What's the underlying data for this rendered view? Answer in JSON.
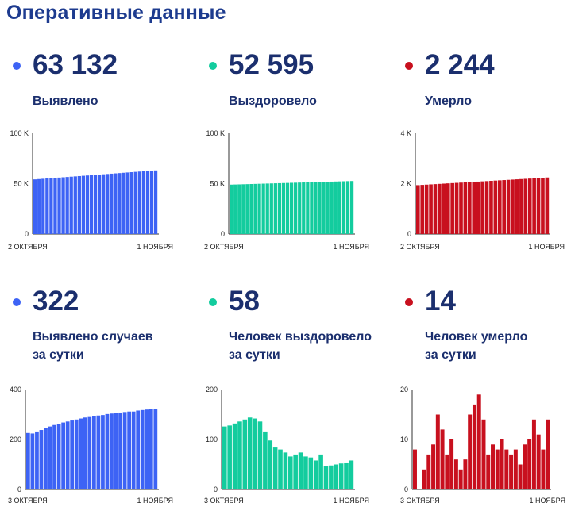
{
  "title": "Оперативные данные",
  "cards": [
    {
      "number": "63 132",
      "caption": [
        "Выявлено"
      ],
      "color": "#3d63f5",
      "chart_data": {
        "type": "bar",
        "ylim": [
          0,
          100000
        ],
        "yticks": [
          "0",
          "50 K",
          "100 K"
        ],
        "xlabels": [
          "2 ОКТЯБРЯ",
          "1 НОЯБРЯ"
        ],
        "values": [
          54200,
          54500,
          54800,
          55100,
          55400,
          55700,
          56000,
          56300,
          56600,
          56900,
          57200,
          57500,
          57800,
          58100,
          58400,
          58700,
          59000,
          59300,
          59600,
          59900,
          60200,
          60500,
          60800,
          61100,
          61400,
          61700,
          62000,
          62300,
          62600,
          62900,
          63132
        ]
      }
    },
    {
      "number": "52 595",
      "caption": [
        "Выздоровело"
      ],
      "color": "#13cc9e",
      "chart_data": {
        "type": "bar",
        "ylim": [
          0,
          100000
        ],
        "yticks": [
          "0",
          "50 K",
          "100 K"
        ],
        "xlabels": [
          "2 ОКТЯБРЯ",
          "1 НОЯБРЯ"
        ],
        "values": [
          49000,
          49120,
          49240,
          49360,
          49480,
          49600,
          49720,
          49840,
          49960,
          50080,
          50200,
          50320,
          50440,
          50560,
          50680,
          50800,
          50920,
          51040,
          51160,
          51280,
          51400,
          51520,
          51640,
          51760,
          51880,
          52000,
          52120,
          52240,
          52360,
          52480,
          52595
        ]
      }
    },
    {
      "number": "2 244",
      "caption": [
        "Умерло"
      ],
      "color": "#c8101e",
      "chart_data": {
        "type": "bar",
        "ylim": [
          0,
          4000
        ],
        "yticks": [
          "0",
          "2 K",
          "4 K"
        ],
        "xlabels": [
          "2 ОКТЯБРЯ",
          "1 НОЯБРЯ"
        ],
        "values": [
          1940,
          1950,
          1960,
          1970,
          1980,
          1990,
          2000,
          2010,
          2020,
          2030,
          2040,
          2050,
          2060,
          2070,
          2080,
          2090,
          2100,
          2110,
          2120,
          2130,
          2140,
          2150,
          2160,
          2170,
          2180,
          2190,
          2200,
          2210,
          2220,
          2230,
          2244
        ]
      }
    },
    {
      "number": "322",
      "caption": [
        "Выявлено случаев",
        "за сутки"
      ],
      "color": "#3d63f5",
      "chart_data": {
        "type": "bar",
        "ylim": [
          0,
          400
        ],
        "yticks": [
          "0",
          "200",
          "400"
        ],
        "xlabels": [
          "3 ОКТЯБРЯ",
          "1 НОЯБРЯ"
        ],
        "values": [
          226,
          224,
          232,
          238,
          246,
          252,
          258,
          262,
          268,
          272,
          276,
          280,
          284,
          288,
          290,
          294,
          296,
          298,
          302,
          304,
          306,
          308,
          310,
          312,
          312,
          316,
          318,
          320,
          322,
          322
        ]
      }
    },
    {
      "number": "58",
      "caption": [
        "Человек выздоровело",
        "за сутки"
      ],
      "color": "#13cc9e",
      "chart_data": {
        "type": "bar",
        "ylim": [
          0,
          200
        ],
        "yticks": [
          "0",
          "100",
          "200"
        ],
        "xlabels": [
          "3 ОКТЯБРЯ",
          "1 НОЯБРЯ"
        ],
        "values": [
          126,
          128,
          132,
          136,
          140,
          144,
          142,
          136,
          116,
          98,
          84,
          80,
          74,
          66,
          70,
          74,
          66,
          64,
          58,
          70,
          46,
          48,
          50,
          52,
          54,
          58
        ]
      }
    },
    {
      "number": "14",
      "caption": [
        "Человек умерло",
        "за сутки"
      ],
      "color": "#c8101e",
      "chart_data": {
        "type": "bar",
        "ylim": [
          0,
          20
        ],
        "yticks": [
          "0",
          "10",
          "20"
        ],
        "xlabels": [
          "3 ОКТЯБРЯ",
          "1 НОЯБРЯ"
        ],
        "values": [
          8,
          0,
          4,
          7,
          9,
          15,
          12,
          7,
          10,
          6,
          4,
          6,
          15,
          17,
          19,
          14,
          7,
          9,
          8,
          10,
          8,
          7,
          8,
          5,
          9,
          10,
          14,
          11,
          8,
          14
        ]
      }
    }
  ]
}
